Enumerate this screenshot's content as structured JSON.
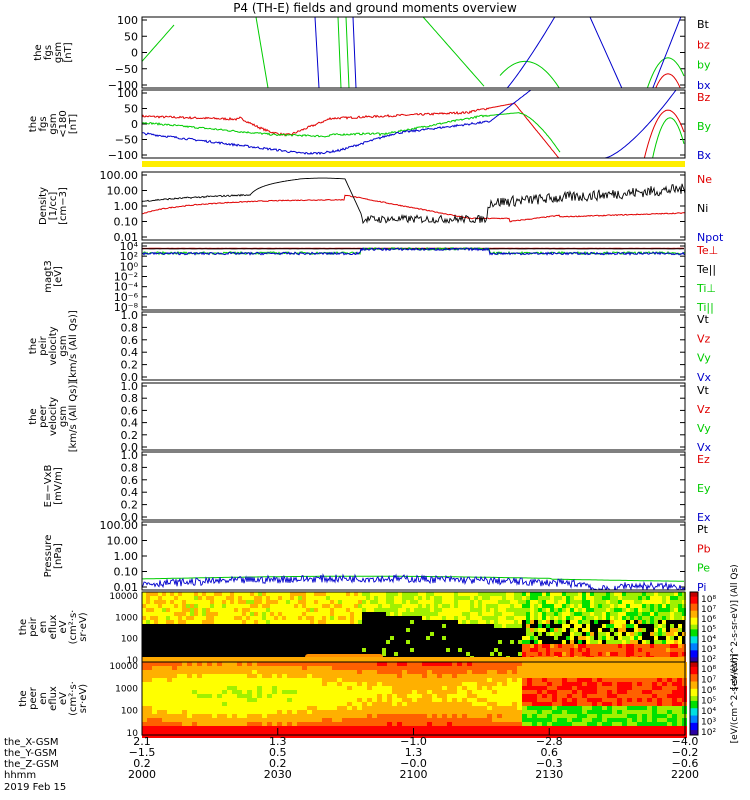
{
  "title": "P4 (TH-E) fields and ground moments overview",
  "colors": {
    "black": "#000000",
    "red": "#e00000",
    "green": "#00cc00",
    "blue": "#0000cc",
    "yellow": "#ffee00"
  },
  "chart_data": [
    {
      "id": "fgs_gsm",
      "type": "line",
      "ylabel": [
        "the",
        "fgs",
        "gsm",
        "[nT]"
      ],
      "yticks": [
        "100",
        "50",
        "0",
        "−50",
        "−100"
      ],
      "ylim": [
        -100,
        100
      ],
      "legend": [
        {
          "text": "Bt",
          "color": "#000000"
        },
        {
          "text": "bz",
          "color": "#e00000"
        },
        {
          "text": "by",
          "color": "#00cc00"
        },
        {
          "text": "bx",
          "color": "#0000cc"
        }
      ]
    },
    {
      "id": "fgs_gsm_180",
      "type": "line",
      "ylabel": [
        "the",
        "fgs",
        "gsm",
        "<180",
        "[nT]"
      ],
      "yticks": [
        "100",
        "50",
        "0",
        "−50",
        "−100"
      ],
      "ylim": [
        -120,
        100
      ],
      "legend": [
        {
          "text": "Bz",
          "color": "#e00000"
        },
        {
          "text": "By",
          "color": "#00cc00"
        },
        {
          "text": "Bx",
          "color": "#0000cc"
        }
      ]
    },
    {
      "id": "density",
      "type": "line",
      "ylabel": [
        "Density",
        "[1/cc]",
        "[cm−3]"
      ],
      "yticks": [
        "100.00",
        "10.00",
        "1.00",
        "0.10",
        "0.01"
      ],
      "ylim": [
        0.01,
        100
      ],
      "log": true,
      "legend": [
        {
          "text": "Ne",
          "color": "#e00000"
        },
        {
          "text": "Ni",
          "color": "#000000"
        },
        {
          "text": "Npot",
          "color": "#0000cc"
        }
      ]
    },
    {
      "id": "temperature",
      "type": "line",
      "ylabel": [
        "magt3",
        "[eV]"
      ],
      "yticks": [
        "10⁴",
        "10²",
        "10⁰",
        "10⁻²",
        "10⁻⁴",
        "10⁻⁶",
        "10⁻⁸"
      ],
      "log": true,
      "legend": [
        {
          "text": "Te⊥",
          "color": "#e00000"
        },
        {
          "text": "Te||",
          "color": "#000000"
        },
        {
          "text": "Ti⊥",
          "color": "#00cc00"
        },
        {
          "text": "Ti||",
          "color": "#00cc00"
        }
      ]
    },
    {
      "id": "peir_velocity",
      "type": "line",
      "ylabel": [
        "the",
        "peir",
        "velocity",
        "gsm",
        "[km/s (All Qs)]"
      ],
      "yticks": [
        "1.0",
        "0.8",
        "0.6",
        "0.4",
        "0.2",
        "0.0"
      ],
      "ylim": [
        0,
        1
      ],
      "legend": [
        {
          "text": "Vt",
          "color": "#000000"
        },
        {
          "text": "Vz",
          "color": "#e00000"
        },
        {
          "text": "Vy",
          "color": "#00cc00"
        },
        {
          "text": "Vx",
          "color": "#0000cc"
        }
      ]
    },
    {
      "id": "peer_velocity",
      "type": "line",
      "ylabel": [
        "the",
        "peer",
        "velocity",
        "gsm",
        "[km/s (All Qs)]"
      ],
      "yticks": [
        "1.0",
        "0.8",
        "0.6",
        "0.4",
        "0.2",
        "0.0"
      ],
      "ylim": [
        0,
        1
      ],
      "legend": [
        {
          "text": "Vt",
          "color": "#000000"
        },
        {
          "text": "Vz",
          "color": "#e00000"
        },
        {
          "text": "Vy",
          "color": "#00cc00"
        },
        {
          "text": "Vx",
          "color": "#0000cc"
        }
      ]
    },
    {
      "id": "efield",
      "type": "line",
      "ylabel": [
        "E=−VxB",
        "[mV/m]"
      ],
      "yticks": [
        "1.0",
        "0.8",
        "0.6",
        "0.4",
        "0.2",
        "0.0"
      ],
      "ylim": [
        0,
        1
      ],
      "legend": [
        {
          "text": "Ez",
          "color": "#e00000"
        },
        {
          "text": "Ey",
          "color": "#00cc00"
        },
        {
          "text": "Ex",
          "color": "#0000cc"
        }
      ]
    },
    {
      "id": "pressure",
      "type": "line",
      "ylabel": [
        "Pressure",
        "[nPa]"
      ],
      "yticks": [
        "100.00",
        "10.00",
        "1.00",
        "0.10",
        "0.01"
      ],
      "ylim": [
        0.01,
        100
      ],
      "log": true,
      "legend": [
        {
          "text": "Pt",
          "color": "#000000"
        },
        {
          "text": "Pb",
          "color": "#e00000"
        },
        {
          "text": "Pe",
          "color": "#00cc00"
        },
        {
          "text": "Pi",
          "color": "#0000cc"
        }
      ]
    },
    {
      "id": "peir_eflux",
      "type": "heatmap",
      "ylabel": [
        "the",
        "peir",
        "en",
        "eflux",
        "eV",
        "(cm²·s·",
        "sr·eV)"
      ],
      "yticks": [
        "10000",
        "1000",
        "100",
        "10"
      ],
      "log": true,
      "colorbar": {
        "label": "[eV/(cm^2-s-sr-eV)] (All Qs)",
        "ticks": [
          "10⁸",
          "10⁷",
          "10⁶",
          "10⁵",
          "10⁴",
          "10³",
          "10²"
        ]
      }
    },
    {
      "id": "peer_eflux",
      "type": "heatmap",
      "ylabel": [
        "the",
        "peer",
        "en",
        "eflux",
        "eV",
        "(cm²·s·",
        "sr·eV)"
      ],
      "yticks": [
        "10000",
        "1000",
        "100",
        "10"
      ],
      "log": true,
      "colorbar": {
        "label": "[eV/(cm^2-s-sr-eV)]",
        "ticks": [
          "10⁸",
          "10⁷",
          "10⁶",
          "10⁵",
          "10⁴",
          "10³",
          "10²"
        ]
      }
    }
  ],
  "xaxis": {
    "rows": [
      {
        "label": "the_X-GSM",
        "values": [
          "2.1",
          "1.3",
          "−1.0",
          "−2.8",
          "−4.0"
        ]
      },
      {
        "label": "the_Y-GSM",
        "values": [
          "−1.5",
          "0.5",
          "1.3",
          "0.6",
          "−0.2"
        ]
      },
      {
        "label": "the_Z-GSM",
        "values": [
          "0.2",
          "0.2",
          "−0.0",
          "−0.3",
          "−0.6"
        ]
      },
      {
        "label": "hhmm",
        "values": [
          "2000",
          "2030",
          "2100",
          "2130",
          "2200"
        ]
      }
    ],
    "date": "2019 Feb 15"
  }
}
